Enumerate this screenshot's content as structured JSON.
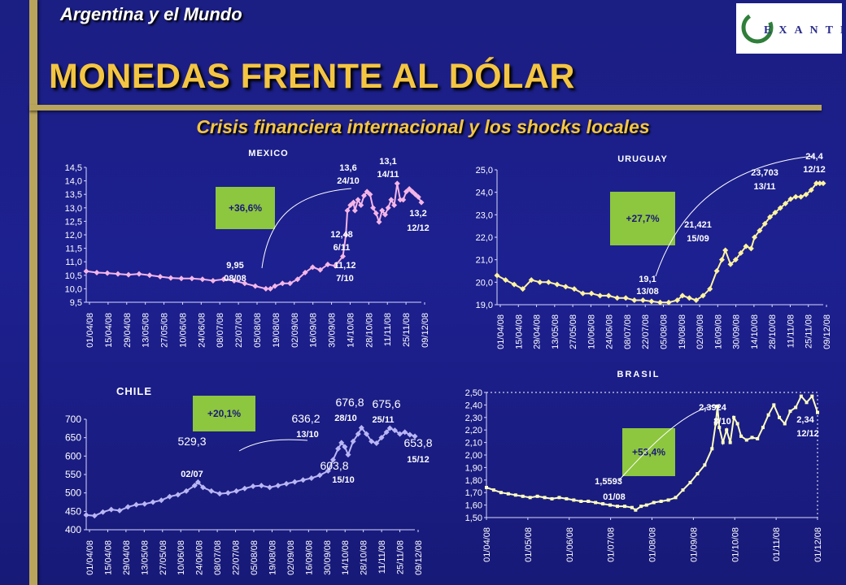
{
  "header": {
    "top_left": "Argentina y el Mundo",
    "title": "MONEDAS FRENTE AL DÓLAR",
    "subtitle": "Crisis financiera internacional y los shocks locales"
  },
  "logo": {
    "text": "EXANTE"
  },
  "colors": {
    "background": "#1d2090",
    "gold": "#b8a45a",
    "title_yellow": "#f4c542",
    "change_box": "#8dc63f",
    "mexico_line": "#f4b6e6",
    "uruguay_line": "#fff3a0",
    "chile_line": "#b9b6f5",
    "brasil_line": "#ffffc0"
  },
  "chart_data": [
    {
      "id": "mexico",
      "type": "line",
      "title": "MEXICO",
      "ylim": [
        9.5,
        14.5
      ],
      "yticks": [
        "9,5",
        "10,0",
        "10,5",
        "11,0",
        "11,5",
        "12,0",
        "12,5",
        "13,0",
        "13,5",
        "14,0",
        "14,5"
      ],
      "x_tick_labels": [
        "01/04/08",
        "15/04/08",
        "29/04/08",
        "13/05/08",
        "27/05/08",
        "10/06/08",
        "24/06/08",
        "08/07/08",
        "22/07/08",
        "05/08/08",
        "19/08/08",
        "02/09/08",
        "16/09/08",
        "30/09/08",
        "14/10/08",
        "28/10/08",
        "11/11/08",
        "25/11/08",
        "09/12/08"
      ],
      "x_index_range": [
        0,
        184
      ],
      "series": [
        {
          "points": [
            [
              0,
              10.65
            ],
            [
              7,
              10.6
            ],
            [
              14,
              10.58
            ],
            [
              21,
              10.55
            ],
            [
              28,
              10.52
            ],
            [
              35,
              10.55
            ],
            [
              42,
              10.5
            ],
            [
              49,
              10.45
            ],
            [
              56,
              10.4
            ],
            [
              63,
              10.38
            ],
            [
              70,
              10.38
            ],
            [
              77,
              10.35
            ],
            [
              84,
              10.3
            ],
            [
              91,
              10.35
            ],
            [
              98,
              10.3
            ],
            [
              105,
              10.2
            ],
            [
              112,
              10.1
            ],
            [
              119,
              10.0
            ],
            [
              122,
              10.0
            ],
            [
              125,
              10.1
            ],
            [
              130,
              10.2
            ],
            [
              135,
              10.2
            ],
            [
              140,
              10.35
            ],
            [
              145,
              10.6
            ],
            [
              150,
              10.8
            ],
            [
              155,
              10.7
            ],
            [
              160,
              10.9
            ],
            [
              165,
              10.85
            ],
            [
              170,
              11.2
            ],
            [
              172,
              12.0
            ],
            [
              173,
              12.9
            ],
            [
              175,
              13.1
            ],
            [
              177,
              13.2
            ],
            [
              178,
              12.9
            ],
            [
              180,
              13.3
            ],
            [
              182,
              13.1
            ],
            [
              184,
              13.45
            ],
            [
              186,
              13.6
            ],
            [
              188,
              13.5
            ],
            [
              190,
              13.0
            ],
            [
              192,
              12.8
            ],
            [
              194,
              12.48
            ],
            [
              196,
              12.9
            ],
            [
              198,
              12.75
            ],
            [
              200,
              13.0
            ],
            [
              202,
              13.3
            ],
            [
              204,
              13.1
            ],
            [
              206,
              13.9
            ],
            [
              208,
              13.3
            ],
            [
              210,
              13.3
            ],
            [
              212,
              13.6
            ],
            [
              214,
              13.7
            ],
            [
              216,
              13.6
            ],
            [
              218,
              13.5
            ],
            [
              220,
              13.4
            ],
            [
              222,
              13.2
            ]
          ],
          "x_max_internal": 222
        }
      ],
      "annotations": [
        {
          "value": "9,95",
          "date": "08/08"
        },
        {
          "value": "11,12",
          "date": "7/10"
        },
        {
          "value": "13,6",
          "date": "24/10"
        },
        {
          "value": "13,1",
          "date": "14/11"
        },
        {
          "value": "12,48",
          "date": "6/11"
        },
        {
          "value": "13,2",
          "date": "12/12"
        }
      ],
      "change": "+36,6%"
    },
    {
      "id": "uruguay",
      "type": "line",
      "title": "URUGUAY",
      "ylim": [
        19.0,
        25.0
      ],
      "yticks": [
        "19,0",
        "20,0",
        "21,0",
        "22,0",
        "23,0",
        "24,0",
        "25,0"
      ],
      "x_tick_labels": [
        "01/04/08",
        "15/04/08",
        "29/04/08",
        "13/05/08",
        "27/05/08",
        "10/06/08",
        "24/06/08",
        "08/07/08",
        "22/07/08",
        "05/08/08",
        "19/08/08",
        "02/09/08",
        "16/09/08",
        "30/09/08",
        "14/10/08",
        "28/10/08",
        "11/11/08",
        "25/11/08",
        "09/12/08"
      ],
      "series": [
        {
          "points": [
            [
              0,
              20.3
            ],
            [
              5,
              20.1
            ],
            [
              10,
              19.9
            ],
            [
              15,
              19.7
            ],
            [
              20,
              20.1
            ],
            [
              25,
              20.0
            ],
            [
              30,
              20.0
            ],
            [
              35,
              19.9
            ],
            [
              40,
              19.8
            ],
            [
              45,
              19.7
            ],
            [
              50,
              19.5
            ],
            [
              55,
              19.5
            ],
            [
              60,
              19.4
            ],
            [
              65,
              19.4
            ],
            [
              70,
              19.3
            ],
            [
              75,
              19.3
            ],
            [
              80,
              19.2
            ],
            [
              85,
              19.2
            ],
            [
              90,
              19.15
            ],
            [
              95,
              19.1
            ],
            [
              100,
              19.1
            ],
            [
              105,
              19.2
            ],
            [
              108,
              19.4
            ],
            [
              112,
              19.3
            ],
            [
              116,
              19.2
            ],
            [
              120,
              19.4
            ],
            [
              124,
              19.7
            ],
            [
              128,
              20.5
            ],
            [
              131,
              21.0
            ],
            [
              133,
              21.42
            ],
            [
              136,
              20.8
            ],
            [
              139,
              21.0
            ],
            [
              142,
              21.3
            ],
            [
              145,
              21.6
            ],
            [
              148,
              21.5
            ],
            [
              150,
              22.0
            ],
            [
              153,
              22.3
            ],
            [
              156,
              22.6
            ],
            [
              159,
              22.9
            ],
            [
              162,
              23.1
            ],
            [
              165,
              23.3
            ],
            [
              168,
              23.5
            ],
            [
              171,
              23.7
            ],
            [
              174,
              23.8
            ],
            [
              177,
              23.8
            ],
            [
              180,
              23.9
            ],
            [
              183,
              24.1
            ],
            [
              186,
              24.4
            ],
            [
              188,
              24.4
            ],
            [
              190,
              24.4
            ]
          ],
          "x_max_internal": 190
        }
      ],
      "annotations": [
        {
          "value": "19,1",
          "date": "13/08"
        },
        {
          "value": "21,421",
          "date": "15/09"
        },
        {
          "value": "23,703",
          "date": "13/11"
        },
        {
          "value": "24,4",
          "date": "12/12"
        }
      ],
      "change": "+27,7%"
    },
    {
      "id": "chile",
      "type": "line",
      "title": "CHILE",
      "ylim": [
        400,
        700
      ],
      "yticks": [
        "400",
        "450",
        "500",
        "550",
        "600",
        "650",
        "700"
      ],
      "x_tick_labels": [
        "01/04/08",
        "15/04/08",
        "29/04/08",
        "13/05/08",
        "27/05/08",
        "10/06/08",
        "24/06/08",
        "08/07/08",
        "22/07/08",
        "05/08/08",
        "19/08/08",
        "02/09/08",
        "16/09/08",
        "30/09/08",
        "14/10/08",
        "28/10/08",
        "11/11/08",
        "25/11/08",
        "09/12/08"
      ],
      "series": [
        {
          "points": [
            [
              0,
              440
            ],
            [
              5,
              438
            ],
            [
              10,
              448
            ],
            [
              15,
              455
            ],
            [
              20,
              452
            ],
            [
              25,
              462
            ],
            [
              30,
              468
            ],
            [
              35,
              470
            ],
            [
              40,
              475
            ],
            [
              45,
              480
            ],
            [
              50,
              490
            ],
            [
              55,
              495
            ],
            [
              60,
              505
            ],
            [
              65,
              520
            ],
            [
              67,
              529.3
            ],
            [
              70,
              515
            ],
            [
              75,
              505
            ],
            [
              80,
              498
            ],
            [
              85,
              500
            ],
            [
              90,
              505
            ],
            [
              95,
              512
            ],
            [
              100,
              518
            ],
            [
              105,
              520
            ],
            [
              110,
              515
            ],
            [
              115,
              520
            ],
            [
              120,
              525
            ],
            [
              125,
              530
            ],
            [
              130,
              535
            ],
            [
              135,
              540
            ],
            [
              140,
              548
            ],
            [
              145,
              560
            ],
            [
              148,
              590
            ],
            [
              151,
              620
            ],
            [
              153,
              636.2
            ],
            [
              155,
              625
            ],
            [
              157,
              603.8
            ],
            [
              160,
              640
            ],
            [
              163,
              660
            ],
            [
              165,
              676.8
            ],
            [
              168,
              660
            ],
            [
              171,
              640
            ],
            [
              174,
              635
            ],
            [
              177,
              650
            ],
            [
              180,
              665
            ],
            [
              182,
              675.6
            ],
            [
              185,
              670
            ],
            [
              188,
              660
            ],
            [
              191,
              665
            ],
            [
              194,
              658
            ],
            [
              197,
              653.8
            ]
          ],
          "x_max_internal": 197
        }
      ],
      "annotations": [
        {
          "value": "529,3",
          "date": "02/07"
        },
        {
          "value": "636,2",
          "date": "13/10"
        },
        {
          "value": "603,8",
          "date": "15/10"
        },
        {
          "value": "676,8",
          "date": "28/10"
        },
        {
          "value": "675,6",
          "date": "25/11"
        },
        {
          "value": "653,8",
          "date": "15/12"
        }
      ],
      "change": "+20,1%"
    },
    {
      "id": "brasil",
      "type": "line",
      "title": "BRASIL",
      "ylim": [
        1.5,
        2.5
      ],
      "yticks": [
        "1,50",
        "1,60",
        "1,70",
        "1,80",
        "1,90",
        "2,00",
        "2,10",
        "2,20",
        "2,30",
        "2,40",
        "2,50"
      ],
      "x_tick_labels": [
        "01/04/08",
        "01/05/08",
        "01/06/08",
        "01/07/08",
        "01/08/08",
        "01/09/08",
        "01/10/08",
        "01/11/08",
        "01/12/08"
      ],
      "series": [
        {
          "points": [
            [
              0,
              1.74
            ],
            [
              4,
              1.72
            ],
            [
              8,
              1.7
            ],
            [
              12,
              1.69
            ],
            [
              16,
              1.68
            ],
            [
              20,
              1.67
            ],
            [
              24,
              1.66
            ],
            [
              28,
              1.67
            ],
            [
              32,
              1.66
            ],
            [
              36,
              1.65
            ],
            [
              40,
              1.66
            ],
            [
              44,
              1.65
            ],
            [
              48,
              1.64
            ],
            [
              52,
              1.63
            ],
            [
              56,
              1.63
            ],
            [
              60,
              1.62
            ],
            [
              64,
              1.61
            ],
            [
              68,
              1.6
            ],
            [
              72,
              1.59
            ],
            [
              76,
              1.59
            ],
            [
              80,
              1.58
            ],
            [
              82,
              1.56
            ],
            [
              85,
              1.59
            ],
            [
              88,
              1.6
            ],
            [
              92,
              1.62
            ],
            [
              96,
              1.63
            ],
            [
              100,
              1.64
            ],
            [
              104,
              1.66
            ],
            [
              108,
              1.72
            ],
            [
              112,
              1.78
            ],
            [
              116,
              1.85
            ],
            [
              120,
              1.92
            ],
            [
              124,
              2.05
            ],
            [
              126,
              2.25
            ],
            [
              127,
              2.39
            ],
            [
              128,
              2.22
            ],
            [
              130,
              2.1
            ],
            [
              132,
              2.2
            ],
            [
              134,
              2.1
            ],
            [
              136,
              2.3
            ],
            [
              138,
              2.25
            ],
            [
              140,
              2.15
            ],
            [
              143,
              2.12
            ],
            [
              146,
              2.14
            ],
            [
              149,
              2.13
            ],
            [
              152,
              2.22
            ],
            [
              155,
              2.32
            ],
            [
              158,
              2.4
            ],
            [
              161,
              2.3
            ],
            [
              164,
              2.25
            ],
            [
              167,
              2.35
            ],
            [
              170,
              2.38
            ],
            [
              173,
              2.47
            ],
            [
              176,
              2.42
            ],
            [
              179,
              2.47
            ],
            [
              182,
              2.34
            ]
          ],
          "x_max_internal": 182
        }
      ],
      "annotations": [
        {
          "value": "1,5593",
          "date": "01/08"
        },
        {
          "value": "2,3924",
          "date": "8/10"
        },
        {
          "value": "2,34",
          "date": "12/12"
        }
      ],
      "change": "+53,4%"
    }
  ]
}
